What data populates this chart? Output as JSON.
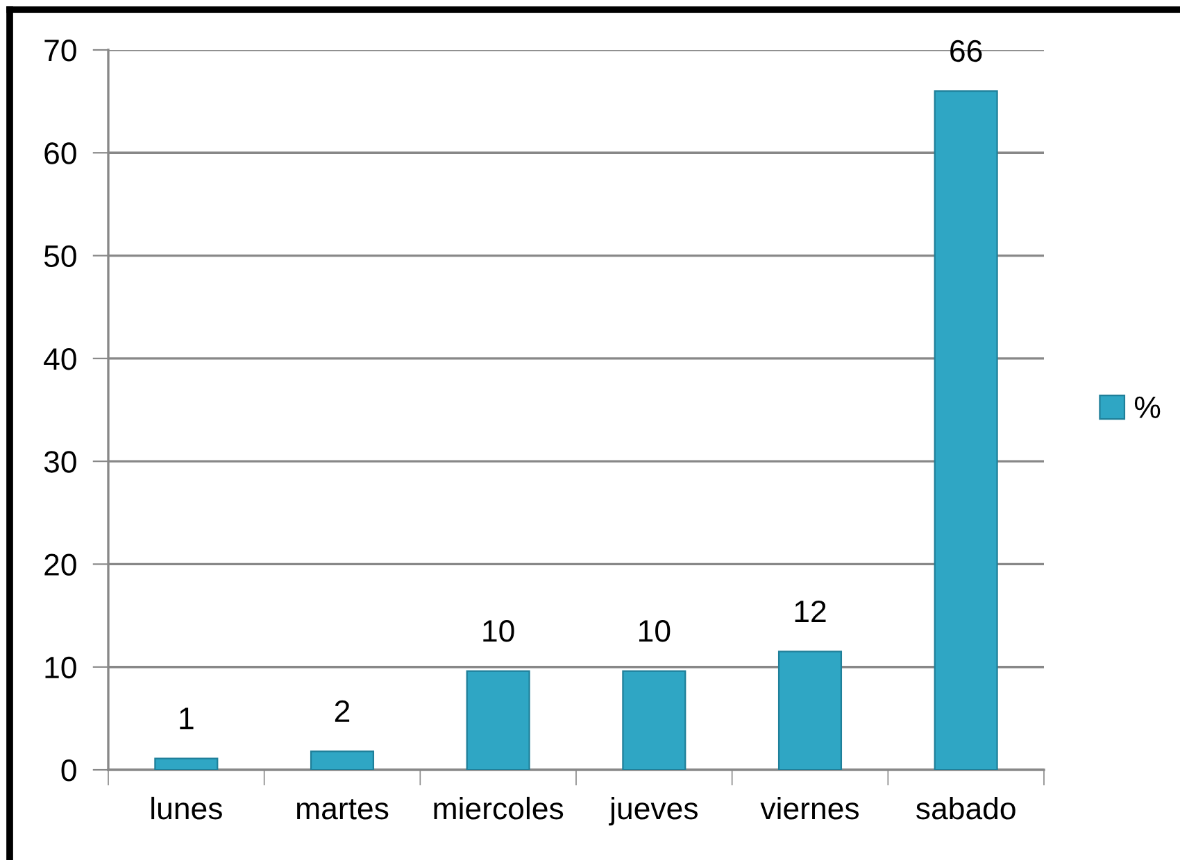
{
  "chart_data": {
    "type": "bar",
    "categories": [
      "lunes",
      "martes",
      "miercoles",
      "jueves",
      "viernes",
      "sabado"
    ],
    "series": [
      {
        "name": "%",
        "color": "#2fa6c4",
        "values": [
          1.1,
          1.8,
          9.6,
          9.6,
          11.5,
          66
        ],
        "value_labels": [
          "1",
          "2",
          "10",
          "10",
          "12",
          "66"
        ]
      }
    ],
    "ylim": [
      0,
      70
    ],
    "yticks": [
      0,
      10,
      20,
      30,
      40,
      50,
      60,
      70
    ],
    "grid": "y",
    "legend": "right"
  }
}
